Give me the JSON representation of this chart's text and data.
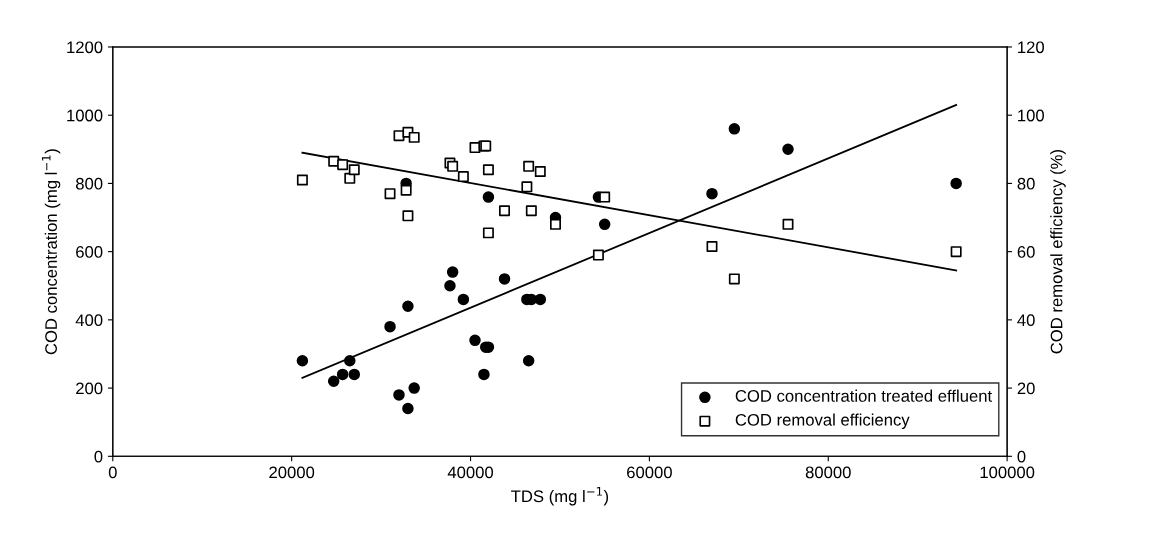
{
  "chart_data": {
    "type": "scatter",
    "xlabel": "TDS (mg l$^{−1}$)",
    "ylabel": "COD concentration (mg l$^{−1}$)",
    "y2label": "COD removal efficiency (%)",
    "xlim": [
      0,
      100000
    ],
    "xticks": [
      0,
      20000,
      40000,
      60000,
      80000,
      100000
    ],
    "ylim": [
      0,
      1200
    ],
    "yticks": [
      0,
      200,
      400,
      600,
      800,
      1000,
      1200
    ],
    "y2lim": [
      0,
      120
    ],
    "y2ticks": [
      0,
      20,
      40,
      60,
      80,
      100,
      120
    ],
    "grid": false,
    "legend": "bottom right",
    "series": [
      {
        "name": "COD concentration treated effluent",
        "color": "#000000",
        "marker": "circle",
        "x": [
          21200,
          24700,
          25700,
          26500,
          27000,
          31000,
          32000,
          32800,
          33000,
          33000,
          33700,
          37700,
          38000,
          39200,
          40500,
          41500,
          41700,
          42000,
          42000,
          43800,
          46300,
          46500,
          46800,
          47800,
          49500,
          54300,
          55000,
          67000,
          69500,
          75500,
          94300
        ],
        "values": [
          280,
          220,
          240,
          280,
          240,
          380,
          180,
          800,
          440,
          140,
          200,
          500,
          540,
          460,
          340,
          240,
          320,
          320,
          760,
          520,
          460,
          280,
          460,
          460,
          700,
          760,
          680,
          770,
          960,
          900,
          800
        ]
      },
      {
        "name": "COD removal efficiency",
        "color": "#000000",
        "marker": "square",
        "axis": "y2",
        "x": [
          21200,
          24700,
          25700,
          26500,
          27000,
          31000,
          32000,
          32800,
          33000,
          33700,
          33000,
          37700,
          38000,
          39200,
          40500,
          41500,
          41700,
          42000,
          42000,
          43800,
          46300,
          46500,
          46800,
          47800,
          49500,
          54300,
          55000,
          67000,
          69500,
          75500,
          94300
        ],
        "values": [
          81,
          86.5,
          85.5,
          81.5,
          84,
          77,
          94,
          78,
          95,
          93.5,
          70.5,
          86,
          85,
          82,
          90.5,
          91,
          91,
          84,
          65.5,
          72,
          79,
          85,
          72,
          83.5,
          68,
          59,
          76,
          61.5,
          52,
          68,
          60
        ]
      },
      {
        "type": "line",
        "color": "#000000",
        "marker": "none",
        "line_style": "solid",
        "x": [
          21200,
          94300
        ],
        "values": [
          230,
          1030
        ]
      },
      {
        "type": "line",
        "color": "#000000",
        "marker": "none",
        "line_style": "solid",
        "axis": "y2",
        "x": [
          21200,
          94300
        ],
        "values": [
          89,
          54.5
        ]
      }
    ]
  }
}
